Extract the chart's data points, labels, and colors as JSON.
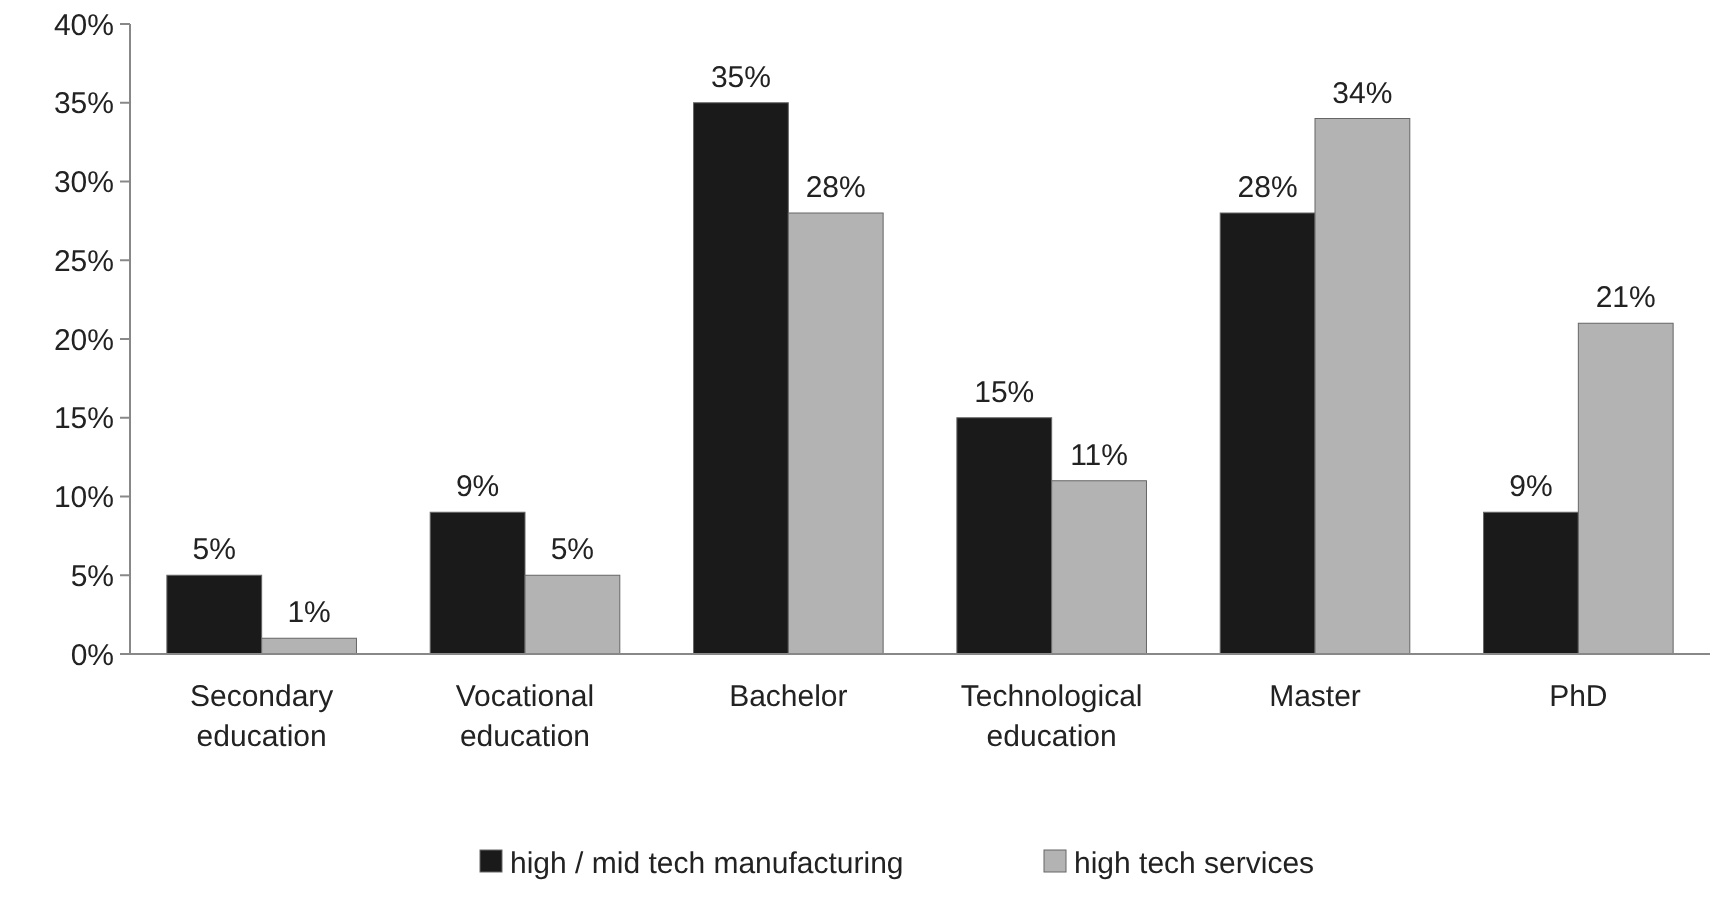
{
  "chart_data": {
    "type": "bar",
    "categories": [
      "Secondary education",
      "Vocational education",
      "Bachelor",
      "Technological education",
      "Master",
      "PhD"
    ],
    "series": [
      {
        "name": "high / mid tech manufacturing",
        "color": "#1a1a1a",
        "values": [
          5,
          9,
          35,
          15,
          28,
          9
        ],
        "value_labels": [
          "5%",
          "9%",
          "35%",
          "15%",
          "28%",
          "9%"
        ]
      },
      {
        "name": "high tech services",
        "color": "#b3b3b3",
        "values": [
          1,
          5,
          28,
          11,
          34,
          21
        ],
        "value_labels": [
          "1%",
          "5%",
          "28%",
          "11%",
          "34%",
          "21%"
        ]
      }
    ],
    "ylim": [
      0,
      40
    ],
    "yticks": [
      {
        "value": 0,
        "label": "0%"
      },
      {
        "value": 5,
        "label": "5%"
      },
      {
        "value": 10,
        "label": "10%"
      },
      {
        "value": 15,
        "label": "15%"
      },
      {
        "value": 20,
        "label": "20%"
      },
      {
        "value": 25,
        "label": "25%"
      },
      {
        "value": 30,
        "label": "30%"
      },
      {
        "value": 35,
        "label": "35%"
      },
      {
        "value": 40,
        "label": "40%"
      }
    ],
    "legend": "bottom",
    "grid": false
  }
}
